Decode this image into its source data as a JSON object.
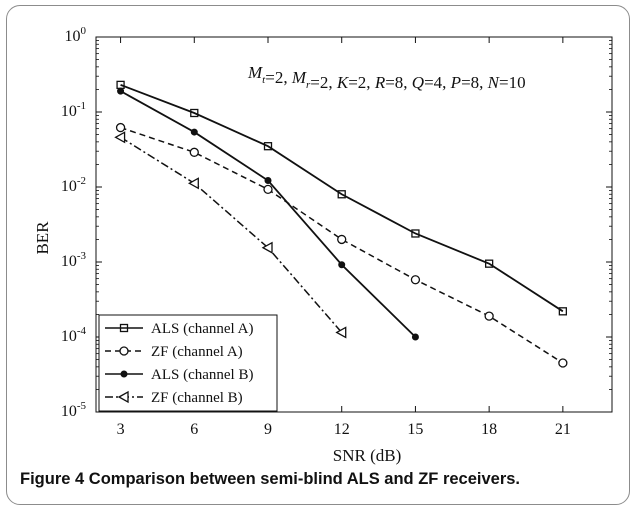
{
  "chart_data": {
    "type": "line",
    "xlabel": "SNR (dB)",
    "ylabel": "BER",
    "yscale": "log",
    "xlim": [
      2,
      23
    ],
    "ylim": [
      1e-05,
      1
    ],
    "x_ticks": [
      "3",
      "6",
      "9",
      "12",
      "15",
      "18",
      "21"
    ],
    "y_ticks": [
      {
        "base": "10",
        "exp": "0"
      },
      {
        "base": "10",
        "exp": "-1"
      },
      {
        "base": "10",
        "exp": "-2"
      },
      {
        "base": "10",
        "exp": "-3"
      },
      {
        "base": "10",
        "exp": "-4"
      },
      {
        "base": "10",
        "exp": "-5"
      }
    ],
    "annotation": [
      {
        "v": "M",
        "s": "t"
      },
      {
        "t": "=2,  "
      },
      {
        "v": "M",
        "s": "r"
      },
      {
        "t": "=2,  "
      },
      {
        "v": "K"
      },
      {
        "t": "=2,  "
      },
      {
        "v": "R"
      },
      {
        "t": "=8,  "
      },
      {
        "v": "Q"
      },
      {
        "t": "=4,  "
      },
      {
        "v": "P"
      },
      {
        "t": "=8,  "
      },
      {
        "v": "N"
      },
      {
        "t": "=10"
      }
    ],
    "legend_position": "bottom-left",
    "grid": false,
    "series": [
      {
        "name": "ALS (channel A)",
        "style": "solid",
        "marker": "square",
        "x": [
          3,
          6,
          9,
          12,
          15,
          18,
          21
        ],
        "y": [
          0.23,
          0.097,
          0.035,
          0.008,
          0.0024,
          0.00095,
          0.00022
        ]
      },
      {
        "name": "ZF (channel A)",
        "style": "dashed",
        "marker": "circle-open",
        "x": [
          3,
          6,
          9,
          12,
          15,
          18,
          21
        ],
        "y": [
          0.062,
          0.029,
          0.0093,
          0.002,
          0.00058,
          0.00019,
          4.5e-05
        ]
      },
      {
        "name": "ALS (channel B)",
        "style": "solid",
        "marker": "dot",
        "x": [
          3,
          6,
          9,
          12,
          15
        ],
        "y": [
          0.19,
          0.054,
          0.0122,
          0.00092,
          0.0001
        ]
      },
      {
        "name": "ZF (channel B)",
        "style": "dashdot",
        "marker": "triangle-left",
        "x": [
          3,
          6,
          9,
          12
        ],
        "y": [
          0.046,
          0.0112,
          0.00155,
          0.000115
        ]
      }
    ]
  },
  "caption": {
    "label": "Figure 4",
    "text": "Comparison between semi-blind ALS and ZF receivers."
  }
}
